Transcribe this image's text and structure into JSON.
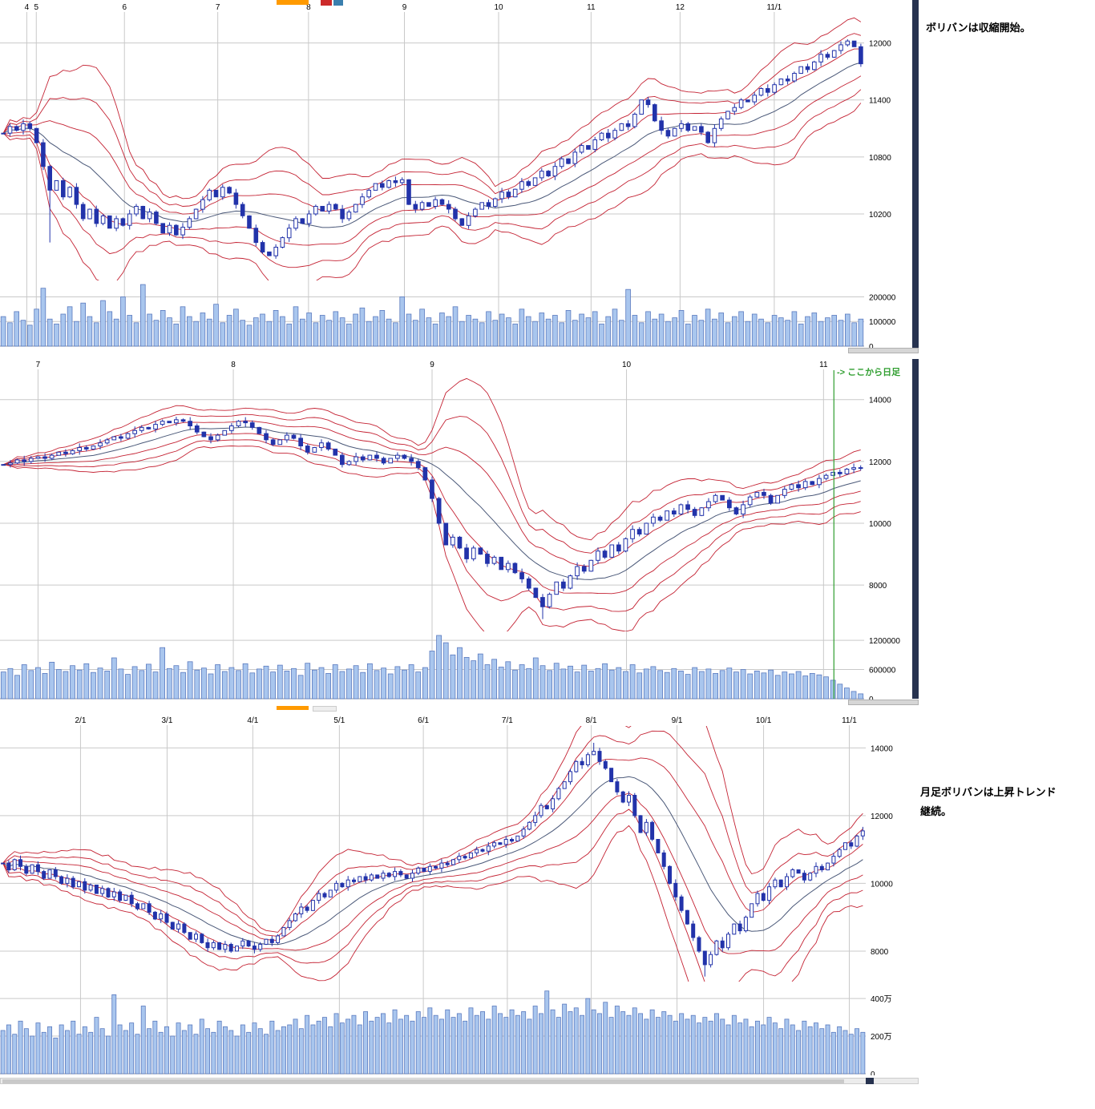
{
  "annotations": {
    "top_note": "ボリバンは収縮開始。",
    "bottom_note_line1": "月足ボリバンは上昇トレンド",
    "bottom_note_line2": "継続。",
    "daily_marker": "->  ここから日足",
    "daily_marker_color": "#2f9e2f"
  },
  "colors": {
    "band": "#c42233",
    "center": "#4a5878",
    "candle": "#2233aa",
    "vol_fill": "#a9c6ee",
    "vol_stroke": "#5a7abf",
    "grid": "#c9c9c9"
  },
  "chart_data": [
    {
      "type": "candlestick",
      "title": "",
      "legend": "bollinger-bands-3-sigma",
      "x_ticks": [
        {
          "label": "4",
          "pos": 0.031
        },
        {
          "label": "5",
          "pos": 0.042
        },
        {
          "label": "6",
          "pos": 0.144
        },
        {
          "label": "7",
          "pos": 0.252
        },
        {
          "label": "8",
          "pos": 0.357
        },
        {
          "label": "9",
          "pos": 0.468
        },
        {
          "label": "10",
          "pos": 0.577
        },
        {
          "label": "11",
          "pos": 0.684
        },
        {
          "label": "12",
          "pos": 0.787
        },
        {
          "label": "11/1",
          "pos": 0.896
        }
      ],
      "price_ticks": [
        12000,
        11400,
        10800,
        10200
      ],
      "price_range": [
        9500,
        12300
      ],
      "vol_ticks": [
        {
          "label": "200000",
          "v": 200000
        },
        {
          "label": "100000",
          "v": 100000
        },
        {
          "label": "0",
          "v": 0
        }
      ],
      "vol_max": 260000,
      "vol_unit": 1000,
      "boll_window": 14,
      "wick_lows": {
        "7": 9900
      },
      "closes": [
        11050,
        11120,
        11080,
        11150,
        11100,
        10950,
        10700,
        10450,
        10550,
        10380,
        10480,
        10300,
        10150,
        10250,
        10100,
        10180,
        10050,
        10150,
        10080,
        10200,
        10280,
        10150,
        10220,
        10100,
        10000,
        10080,
        9980,
        10060,
        10150,
        10250,
        10350,
        10450,
        10380,
        10480,
        10420,
        10300,
        10180,
        10050,
        9900,
        9800,
        9760,
        9850,
        9950,
        10050,
        10150,
        10100,
        10200,
        10280,
        10230,
        10300,
        10250,
        10150,
        10220,
        10300,
        10380,
        10450,
        10520,
        10480,
        10550,
        10530,
        10560,
        10300,
        10250,
        10320,
        10280,
        10350,
        10300,
        10250,
        10150,
        10080,
        10180,
        10250,
        10320,
        10280,
        10360,
        10430,
        10380,
        10460,
        10540,
        10500,
        10580,
        10650,
        10600,
        10700,
        10780,
        10730,
        10850,
        10920,
        10880,
        10980,
        11050,
        11000,
        11080,
        11150,
        11120,
        11250,
        11400,
        11350,
        11180,
        11080,
        11020,
        11100,
        11150,
        11080,
        11120,
        11060,
        10950,
        11100,
        11200,
        11280,
        11320,
        11400,
        11380,
        11450,
        11520,
        11480,
        11560,
        11620,
        11600,
        11680,
        11750,
        11720,
        11800,
        11880,
        11850,
        11920,
        11980,
        12020,
        11960,
        11780
      ],
      "volumes": [
        120,
        95,
        140,
        105,
        85,
        150,
        235,
        110,
        90,
        130,
        160,
        100,
        175,
        120,
        95,
        185,
        140,
        110,
        200,
        125,
        95,
        250,
        130,
        105,
        145,
        115,
        90,
        160,
        120,
        100,
        135,
        110,
        170,
        95,
        125,
        150,
        105,
        85,
        115,
        130,
        100,
        145,
        120,
        90,
        160,
        110,
        135,
        95,
        125,
        105,
        140,
        115,
        90,
        130,
        155,
        100,
        120,
        145,
        110,
        95,
        200,
        130,
        105,
        150,
        115,
        90,
        135,
        120,
        160,
        100,
        125,
        110,
        95,
        140,
        105,
        130,
        115,
        90,
        150,
        120,
        100,
        135,
        110,
        125,
        95,
        145,
        105,
        130,
        115,
        140,
        90,
        120,
        150,
        105,
        230,
        125,
        95,
        140,
        110,
        130,
        100,
        115,
        145,
        90,
        125,
        105,
        150,
        110,
        135,
        95,
        120,
        140,
        100,
        130,
        110,
        95,
        125,
        115,
        105,
        140,
        90,
        120,
        135,
        100,
        115,
        125,
        105,
        130,
        95,
        110
      ]
    },
    {
      "type": "candlestick",
      "title": "",
      "legend": "bollinger-bands-3-sigma",
      "x_ticks": [
        {
          "label": "7",
          "pos": 0.044
        },
        {
          "label": "8",
          "pos": 0.27
        },
        {
          "label": "9",
          "pos": 0.5
        },
        {
          "label": "10",
          "pos": 0.725
        },
        {
          "label": "11",
          "pos": 0.953
        }
      ],
      "price_ticks": [
        14000,
        12000,
        10000,
        8000
      ],
      "price_range": [
        6500,
        14900
      ],
      "vol_ticks": [
        {
          "label": "1200000",
          "v": 1200000
        },
        {
          "label": "600000",
          "v": 600000
        },
        {
          "label": "0",
          "v": 0
        }
      ],
      "vol_max": 1350000,
      "vol_unit": 1000,
      "boll_window": 14,
      "marker_x": 0.965,
      "wick_lows": {
        "78": 6900
      },
      "closes": [
        11900,
        11950,
        12050,
        12000,
        12100,
        12150,
        12100,
        12200,
        12300,
        12250,
        12350,
        12450,
        12400,
        12500,
        12600,
        12700,
        12800,
        12750,
        12900,
        13000,
        13100,
        13050,
        13200,
        13300,
        13250,
        13350,
        13300,
        13150,
        12950,
        12800,
        12700,
        12850,
        13000,
        13150,
        13300,
        13250,
        13100,
        12900,
        12700,
        12550,
        12700,
        12850,
        12750,
        12500,
        12300,
        12450,
        12600,
        12400,
        12200,
        11900,
        12000,
        12150,
        12050,
        12200,
        12100,
        11950,
        12100,
        12200,
        12100,
        12000,
        11800,
        11400,
        10800,
        10000,
        9300,
        9550,
        9200,
        8850,
        9200,
        9000,
        8700,
        8900,
        8500,
        8700,
        8400,
        8200,
        7900,
        7600,
        7300,
        7700,
        8100,
        7900,
        8300,
        8600,
        8450,
        8800,
        9100,
        8900,
        9300,
        9100,
        9500,
        9800,
        9650,
        10000,
        10200,
        10100,
        10400,
        10300,
        10600,
        10450,
        10250,
        10500,
        10700,
        10900,
        10750,
        10500,
        10300,
        10600,
        10850,
        11000,
        10900,
        10650,
        10900,
        11100,
        11250,
        11150,
        11350,
        11250,
        11450,
        11550,
        11650,
        11600,
        11750,
        11800,
        11780
      ],
      "volumes": [
        550,
        620,
        480,
        700,
        580,
        640,
        520,
        750,
        600,
        560,
        680,
        590,
        720,
        540,
        630,
        570,
        840,
        610,
        500,
        660,
        580,
        710,
        550,
        1050,
        620,
        680,
        540,
        760,
        590,
        630,
        510,
        700,
        560,
        640,
        580,
        720,
        530,
        610,
        670,
        550,
        690,
        570,
        620,
        480,
        730,
        590,
        640,
        520,
        700,
        560,
        610,
        680,
        540,
        720,
        580,
        630,
        510,
        660,
        590,
        700,
        550,
        640,
        980,
        1300,
        1150,
        900,
        1050,
        850,
        780,
        920,
        700,
        810,
        650,
        760,
        590,
        700,
        620,
        840,
        680,
        580,
        730,
        610,
        670,
        550,
        690,
        570,
        620,
        720,
        590,
        640,
        560,
        700,
        530,
        610,
        660,
        580,
        540,
        620,
        570,
        500,
        640,
        560,
        610,
        520,
        580,
        630,
        550,
        600,
        510,
        570,
        530,
        590,
        480,
        550,
        510,
        560,
        470,
        520,
        490,
        450,
        380,
        300,
        220,
        150,
        100
      ]
    },
    {
      "type": "candlestick",
      "title": "",
      "legend": "bollinger-bands-3-sigma",
      "x_ticks": [
        {
          "label": "2/1",
          "pos": 0.093
        },
        {
          "label": "3/1",
          "pos": 0.193
        },
        {
          "label": "4/1",
          "pos": 0.292
        },
        {
          "label": "5/1",
          "pos": 0.392
        },
        {
          "label": "6/1",
          "pos": 0.489
        },
        {
          "label": "7/1",
          "pos": 0.586
        },
        {
          "label": "8/1",
          "pos": 0.683
        },
        {
          "label": "9/1",
          "pos": 0.782
        },
        {
          "label": "10/1",
          "pos": 0.882
        },
        {
          "label": "11/1",
          "pos": 0.981
        }
      ],
      "price_ticks": [
        14000,
        12000,
        10000,
        8000
      ],
      "price_range": [
        7100,
        14600
      ],
      "vol_ticks": [
        {
          "label": "400万",
          "v": 4000000
        },
        {
          "label": "200万",
          "v": 2000000
        },
        {
          "label": "0",
          "v": 0
        }
      ],
      "vol_max": 4600000,
      "vol_unit": 10000,
      "boll_window": 14,
      "wick_lows": {
        "120": 7250
      },
      "wick_highs": {
        "101": 14150
      },
      "closes": [
        10600,
        10400,
        10700,
        10500,
        10300,
        10550,
        10350,
        10150,
        10400,
        10200,
        10000,
        10150,
        9900,
        10050,
        9800,
        9950,
        9700,
        9850,
        9600,
        9750,
        9500,
        9650,
        9400,
        9250,
        9400,
        9150,
        8950,
        9100,
        8850,
        8650,
        8800,
        8550,
        8350,
        8500,
        8250,
        8100,
        8250,
        8050,
        8200,
        8000,
        8150,
        8300,
        8150,
        8050,
        8200,
        8350,
        8250,
        8450,
        8700,
        8900,
        9100,
        9300,
        9200,
        9500,
        9700,
        9600,
        9800,
        10000,
        9900,
        10100,
        10050,
        10200,
        10100,
        10250,
        10150,
        10300,
        10200,
        10350,
        10250,
        10150,
        10300,
        10450,
        10350,
        10500,
        10450,
        10600,
        10550,
        10700,
        10800,
        10750,
        10900,
        11000,
        10950,
        11100,
        11200,
        11150,
        11300,
        11250,
        11400,
        11600,
        11800,
        12000,
        12300,
        12200,
        12500,
        12800,
        13000,
        13300,
        13600,
        13500,
        13800,
        13900,
        13600,
        13400,
        13000,
        12700,
        12400,
        12600,
        12000,
        11500,
        11800,
        11300,
        10900,
        10500,
        10000,
        9600,
        9200,
        8800,
        8400,
        8000,
        7600,
        7900,
        8300,
        8100,
        8500,
        8800,
        8600,
        9000,
        9400,
        9700,
        9500,
        9900,
        10100,
        9900,
        10200,
        10400,
        10300,
        10100,
        10300,
        10500,
        10400,
        10600,
        10800,
        11000,
        11200,
        11100,
        11400,
        11550
      ],
      "volumes": [
        230,
        260,
        210,
        280,
        240,
        200,
        270,
        220,
        250,
        190,
        260,
        230,
        280,
        210,
        250,
        220,
        300,
        240,
        200,
        420,
        260,
        230,
        270,
        210,
        360,
        240,
        280,
        220,
        250,
        200,
        270,
        230,
        260,
        210,
        290,
        240,
        220,
        280,
        250,
        230,
        200,
        260,
        220,
        270,
        240,
        210,
        280,
        230,
        250,
        260,
        290,
        240,
        310,
        260,
        280,
        300,
        250,
        320,
        270,
        290,
        310,
        260,
        330,
        280,
        300,
        320,
        270,
        340,
        290,
        310,
        280,
        330,
        300,
        350,
        310,
        290,
        340,
        300,
        320,
        280,
        350,
        310,
        330,
        290,
        360,
        320,
        300,
        340,
        310,
        330,
        290,
        360,
        320,
        440,
        340,
        300,
        370,
        330,
        350,
        310,
        400,
        340,
        320,
        380,
        300,
        360,
        330,
        310,
        350,
        320,
        290,
        340,
        300,
        330,
        310,
        280,
        320,
        290,
        310,
        270,
        300,
        280,
        320,
        290,
        260,
        310,
        270,
        290,
        250,
        280,
        260,
        300,
        270,
        240,
        290,
        260,
        230,
        280,
        250,
        270,
        240,
        260,
        220,
        250,
        230,
        210,
        240,
        220
      ]
    }
  ]
}
